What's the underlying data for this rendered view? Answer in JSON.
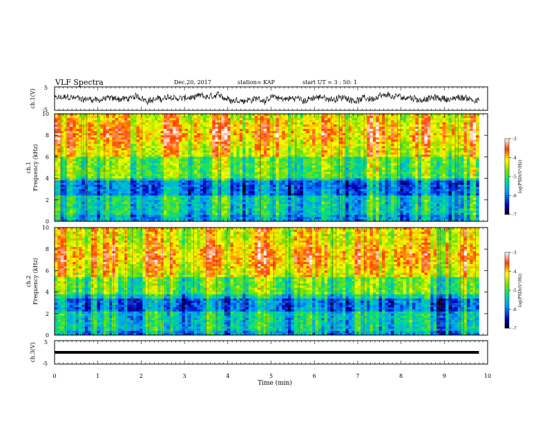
{
  "header": {
    "title": "VLF Spectra",
    "date": "Dec.20, 2017",
    "station": "station= KAP",
    "start": "start  UT =   3  : 50: 1"
  },
  "chart_data": [
    {
      "type": "line",
      "ylabel": "ch.1(V)",
      "ylim": [
        -5,
        5
      ],
      "yticks": [
        "5",
        "-5"
      ],
      "xlim": [
        0,
        10
      ],
      "trace": "noisy waveform roughly -2 to 2 V",
      "color": "#000000"
    },
    {
      "type": "heatmap",
      "ylabel_top": "ch.1",
      "ylabel": "Frequency (kHz)",
      "ylim": [
        0,
        10
      ],
      "yticks": [
        "0",
        "2",
        "4",
        "6",
        "8",
        "10"
      ],
      "xlim": [
        0,
        10
      ],
      "data_xmax": 9.8,
      "colorbar": {
        "label": "log(PSD)(V²/Hz)",
        "range": [
          -7,
          -3
        ],
        "ticks": [
          "-3",
          "-4",
          "-5",
          "-6",
          "-7"
        ]
      },
      "bands_khz": {
        "high_power_red": [
          6,
          10
        ],
        "mid_green": [
          4,
          6
        ],
        "low_blue": [
          2.5,
          3.8
        ],
        "low_cyan_green": [
          0.6,
          2.5
        ]
      }
    },
    {
      "type": "heatmap",
      "ylabel_top": "ch.2",
      "ylabel": "Frequency (kHz)",
      "ylim": [
        0,
        10
      ],
      "yticks": [
        "0",
        "2",
        "4",
        "6",
        "8",
        "10"
      ],
      "xlim": [
        0,
        10
      ],
      "data_xmax": 9.8,
      "colorbar": {
        "label": "log(PSD)(V²/Hz)",
        "range": [
          -7,
          -3
        ],
        "ticks": [
          "-3",
          "-4",
          "-5",
          "-6",
          "-7"
        ]
      },
      "bands_khz": {
        "high_power_red": [
          5.5,
          10
        ],
        "mid_green": [
          3.8,
          5.5
        ],
        "low_blue": [
          2.1,
          3.4
        ],
        "low_cyan_green": [
          0.5,
          2.1
        ]
      }
    },
    {
      "type": "line",
      "ylabel": "ch.3(V)",
      "ylim": [
        -5,
        5
      ],
      "yticks": [
        "5",
        "-5"
      ],
      "xlim": [
        0,
        10
      ],
      "constant_value": 0,
      "color": "#000000"
    }
  ],
  "xaxis": {
    "label": "Time (min)",
    "ticks": [
      "0",
      "1",
      "2",
      "3",
      "4",
      "5",
      "6",
      "7",
      "8",
      "9",
      "10"
    ]
  }
}
